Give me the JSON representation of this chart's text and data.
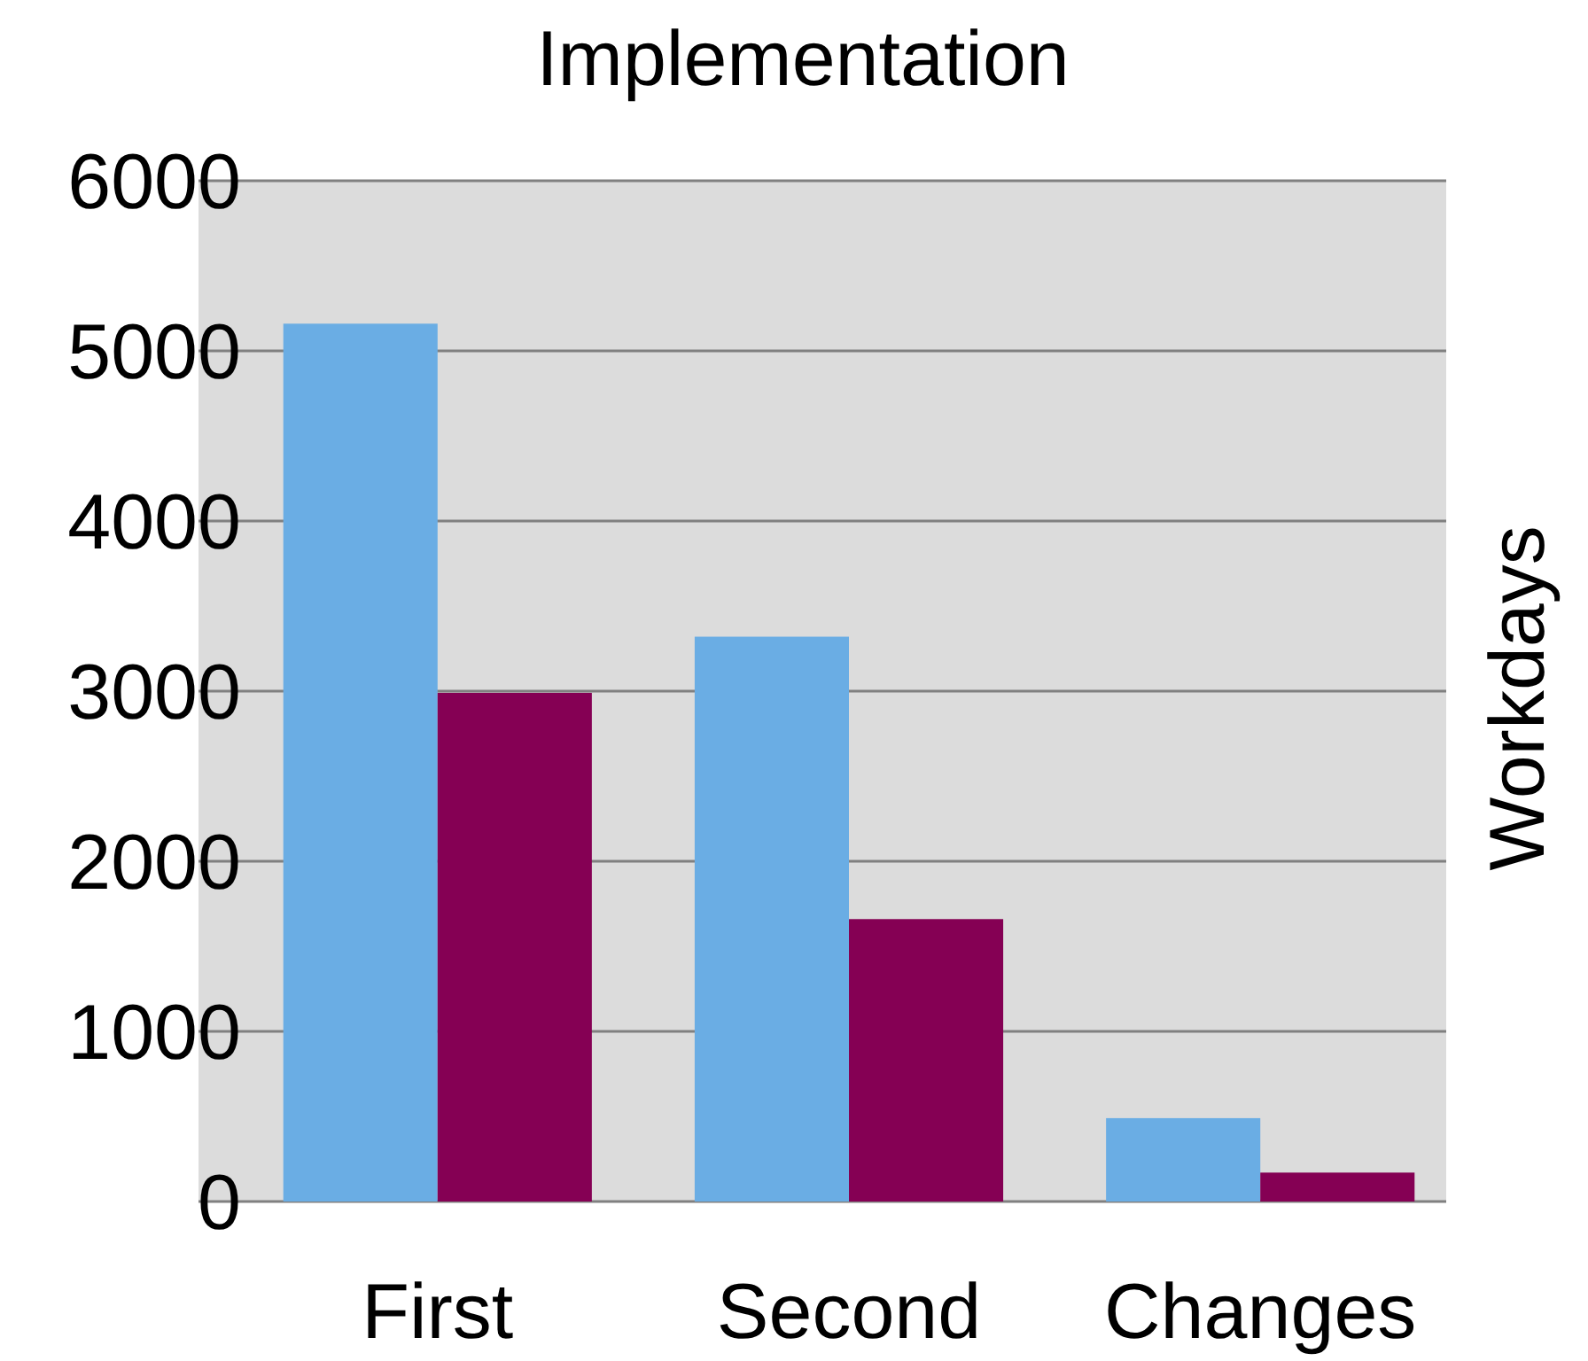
{
  "chart_data": {
    "type": "bar",
    "title": "Implementation",
    "ylabel": "Workdays",
    "categories": [
      "First",
      "Second",
      "Changes"
    ],
    "series": [
      {
        "color": "#6aade4",
        "values": [
          5160,
          3320,
          490
        ]
      },
      {
        "color": "#850054",
        "values": [
          2990,
          1660,
          170
        ]
      }
    ],
    "ylim": [
      0,
      6000
    ],
    "yticks": [
      0,
      1000,
      2000,
      3000,
      4000,
      5000,
      6000
    ],
    "grid": "y"
  }
}
